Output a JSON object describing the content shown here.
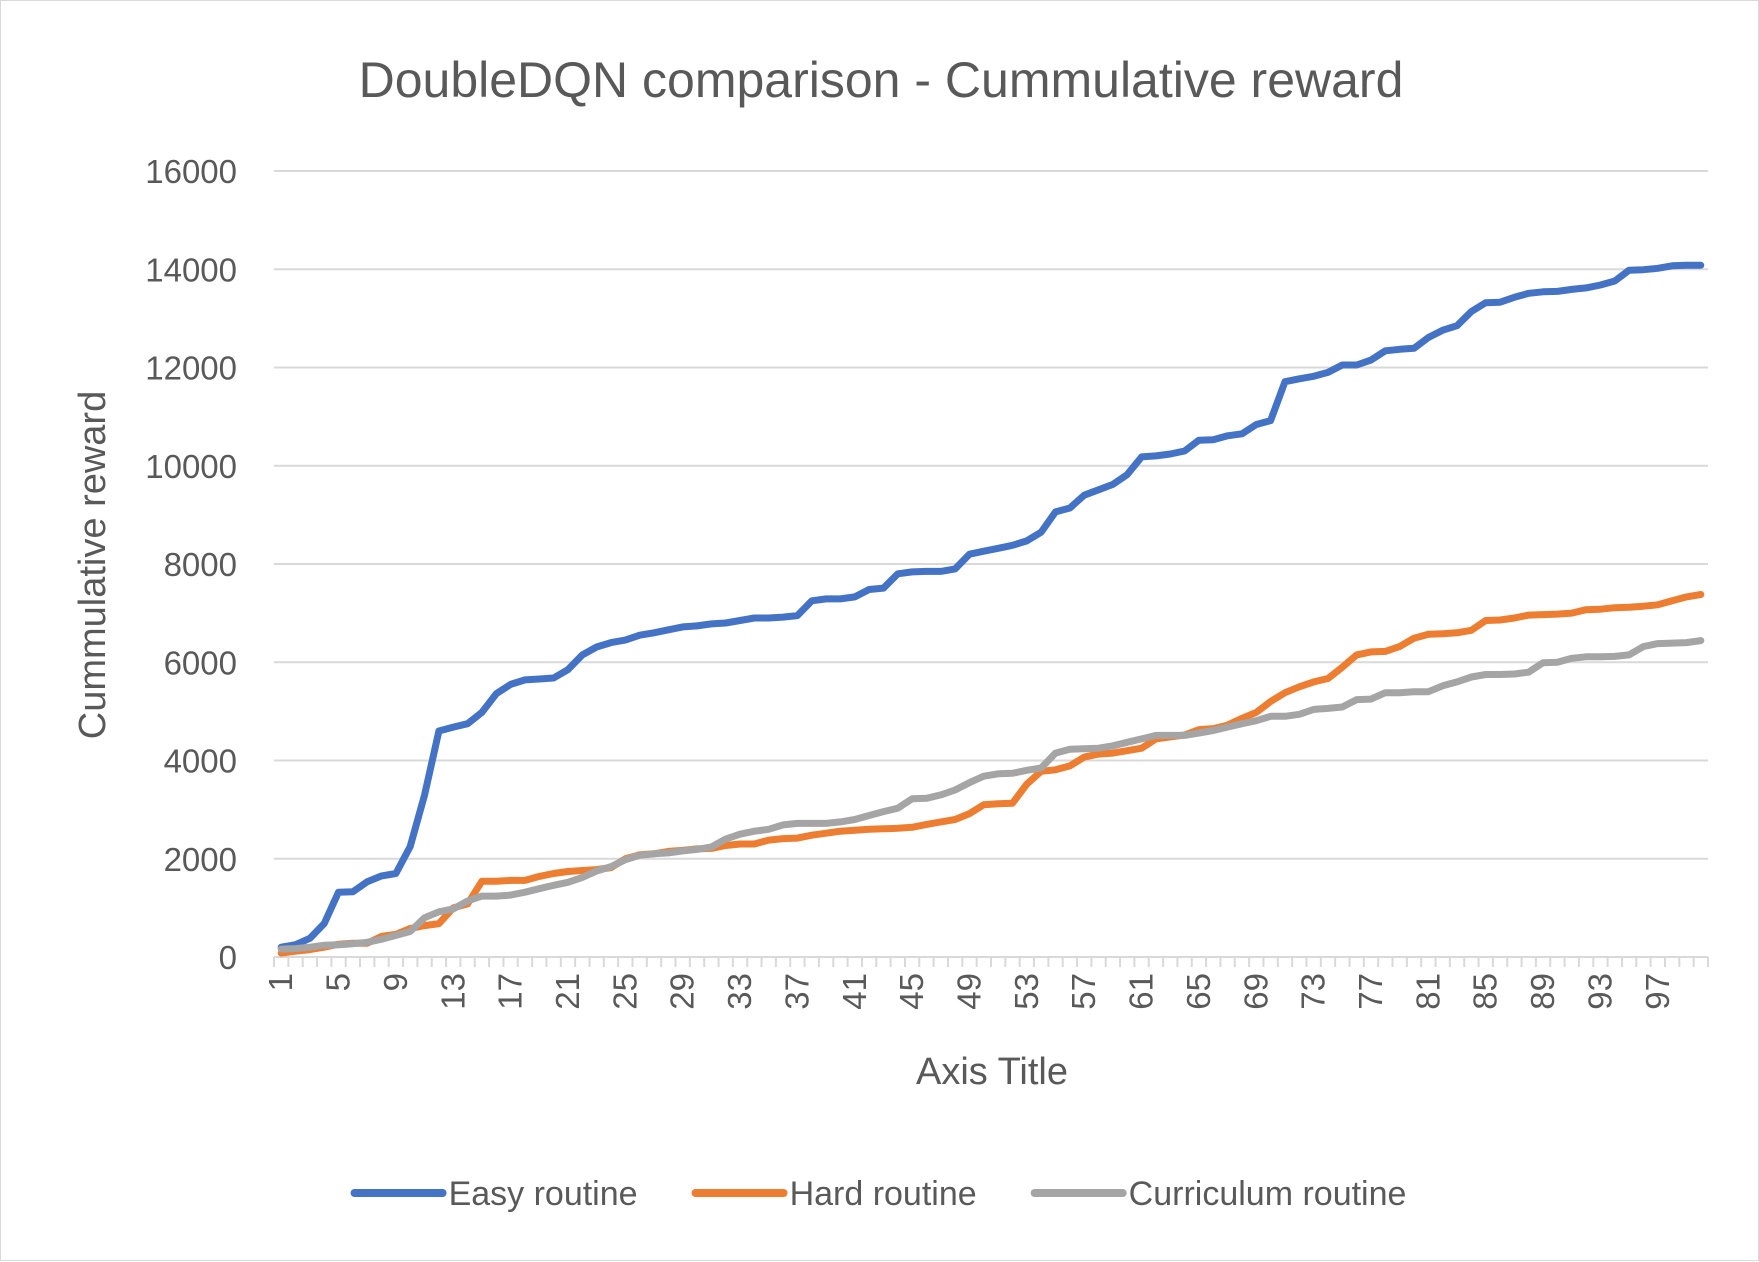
{
  "chart_data": {
    "type": "line",
    "title": "DoubleDQN comparison - Cummulative reward",
    "xlabel": "Axis Title",
    "ylabel": "Cummulative reward",
    "ylim": [
      0,
      16000
    ],
    "yticks": [
      0,
      2000,
      4000,
      6000,
      8000,
      10000,
      12000,
      14000,
      16000
    ],
    "ytick_labels": [
      "0",
      "2000",
      "4000",
      "6000",
      "8000",
      "10000",
      "12000",
      "14000",
      "16000"
    ],
    "x": [
      1,
      2,
      3,
      4,
      5,
      6,
      7,
      8,
      9,
      10,
      11,
      12,
      13,
      14,
      15,
      16,
      17,
      18,
      19,
      20,
      21,
      22,
      23,
      24,
      25,
      26,
      27,
      28,
      29,
      30,
      31,
      32,
      33,
      34,
      35,
      36,
      37,
      38,
      39,
      40,
      41,
      42,
      43,
      44,
      45,
      46,
      47,
      48,
      49,
      50,
      51,
      52,
      53,
      54,
      55,
      56,
      57,
      58,
      59,
      60,
      61,
      62,
      63,
      64,
      65,
      66,
      67,
      68,
      69,
      70,
      71,
      72,
      73,
      74,
      75,
      76,
      77,
      78,
      79,
      80,
      81,
      82,
      83,
      84,
      85,
      86,
      87,
      88,
      89,
      90,
      91,
      92,
      93,
      94,
      95,
      96,
      97,
      98,
      99,
      100
    ],
    "xtick_labels": [
      "1",
      "5",
      "9",
      "13",
      "17",
      "21",
      "25",
      "29",
      "33",
      "37",
      "41",
      "45",
      "49",
      "53",
      "57",
      "61",
      "65",
      "69",
      "73",
      "77",
      "81",
      "85",
      "89",
      "93",
      "97"
    ],
    "grid": true,
    "legend_position": "bottom",
    "series": [
      {
        "name": "Easy routine",
        "color": "#4472c4",
        "values": [
          200,
          250,
          380,
          680,
          1320,
          1330,
          1530,
          1650,
          1700,
          2250,
          3300,
          4600,
          4680,
          4750,
          4980,
          5360,
          5550,
          5640,
          5660,
          5680,
          5850,
          6150,
          6310,
          6400,
          6450,
          6550,
          6600,
          6660,
          6720,
          6740,
          6780,
          6800,
          6850,
          6900,
          6900,
          6920,
          6950,
          7250,
          7290,
          7290,
          7330,
          7480,
          7510,
          7800,
          7840,
          7850,
          7850,
          7900,
          8200,
          8260,
          8320,
          8380,
          8470,
          8650,
          9060,
          9140,
          9400,
          9510,
          9620,
          9820,
          10180,
          10200,
          10240,
          10300,
          10520,
          10530,
          10610,
          10650,
          10840,
          10920,
          11710,
          11770,
          11820,
          11900,
          12050,
          12050,
          12150,
          12340,
          12370,
          12390,
          12610,
          12760,
          12850,
          13140,
          13320,
          13330,
          13430,
          13510,
          13540,
          13550,
          13590,
          13620,
          13680,
          13760,
          13980,
          13990,
          14020,
          14070,
          14080,
          14080
        ]
      },
      {
        "name": "Hard routine",
        "color": "#ed7d31",
        "values": [
          80,
          120,
          150,
          200,
          260,
          280,
          280,
          420,
          460,
          580,
          640,
          680,
          1000,
          1080,
          1540,
          1540,
          1560,
          1560,
          1640,
          1700,
          1740,
          1760,
          1780,
          1820,
          2000,
          2080,
          2100,
          2150,
          2170,
          2200,
          2210,
          2270,
          2300,
          2300,
          2380,
          2410,
          2420,
          2480,
          2520,
          2560,
          2580,
          2600,
          2610,
          2620,
          2640,
          2700,
          2750,
          2800,
          2920,
          3100,
          3120,
          3130,
          3520,
          3780,
          3810,
          3890,
          4070,
          4130,
          4150,
          4200,
          4250,
          4440,
          4480,
          4520,
          4630,
          4650,
          4720,
          4860,
          4980,
          5200,
          5380,
          5500,
          5600,
          5670,
          5900,
          6150,
          6210,
          6220,
          6320,
          6490,
          6570,
          6580,
          6600,
          6650,
          6850,
          6860,
          6900,
          6960,
          6970,
          6980,
          7000,
          7070,
          7080,
          7110,
          7120,
          7140,
          7170,
          7250,
          7330,
          7380
        ]
      },
      {
        "name": "Curriculum routine",
        "color": "#a5a5a5",
        "values": [
          160,
          170,
          200,
          240,
          250,
          270,
          300,
          360,
          440,
          520,
          800,
          920,
          980,
          1140,
          1240,
          1240,
          1260,
          1320,
          1390,
          1460,
          1520,
          1620,
          1750,
          1840,
          1980,
          2070,
          2100,
          2120,
          2160,
          2190,
          2240,
          2400,
          2500,
          2560,
          2600,
          2690,
          2720,
          2720,
          2720,
          2750,
          2800,
          2880,
          2960,
          3030,
          3220,
          3230,
          3300,
          3400,
          3550,
          3680,
          3730,
          3740,
          3800,
          3850,
          4150,
          4230,
          4240,
          4250,
          4300,
          4370,
          4440,
          4510,
          4510,
          4510,
          4560,
          4610,
          4680,
          4750,
          4810,
          4900,
          4900,
          4940,
          5040,
          5060,
          5090,
          5240,
          5250,
          5380,
          5380,
          5400,
          5400,
          5520,
          5600,
          5700,
          5750,
          5750,
          5760,
          5800,
          5990,
          6000,
          6080,
          6110,
          6110,
          6120,
          6150,
          6320,
          6380,
          6390,
          6400,
          6440
        ]
      }
    ]
  }
}
